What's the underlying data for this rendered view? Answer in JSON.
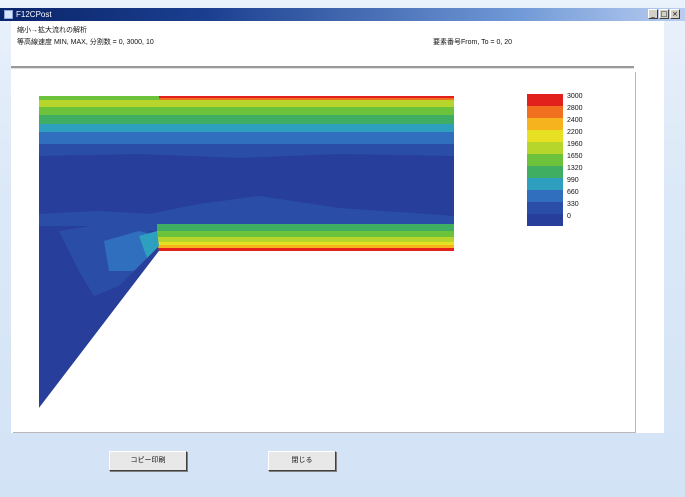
{
  "window": {
    "title": "F12CPost"
  },
  "header": {
    "line1": "縮小→拡大流れの解析",
    "line2": "等高線速度 MIN, MAX, 分割数 = 0, 3000, 10",
    "line3": "要素番号From, To = 0, 20"
  },
  "legend": {
    "labels": [
      "3000",
      "2800",
      "2400",
      "2200",
      "1960",
      "1650",
      "1320",
      "990",
      "660",
      "330",
      "0"
    ],
    "colors": [
      "#e2211c",
      "#f07020",
      "#f7b31e",
      "#e8e023",
      "#b6d62b",
      "#6cc23a",
      "#3fae63",
      "#2f9fc0",
      "#2f6fbe",
      "#2a4ea8",
      "#273f9a"
    ]
  },
  "buttons": {
    "copy_print": "コピー印刷",
    "close": "閉じる"
  }
}
